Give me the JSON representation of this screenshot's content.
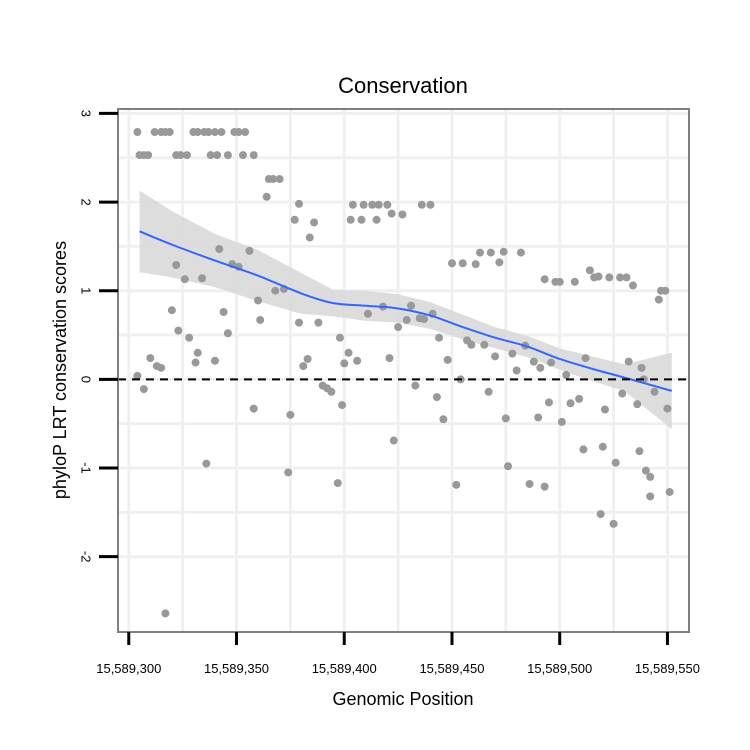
{
  "chart_data": {
    "type": "scatter",
    "title": "Conservation",
    "xlabel": "Genomic Position",
    "ylabel": "phyloP LRT conservation scores",
    "xlim": [
      15589295,
      15589560
    ],
    "ylim": [
      -2.85,
      3.05
    ],
    "x_ticks": [
      15589300,
      15589350,
      15589400,
      15589450,
      15589500,
      15589550
    ],
    "x_tick_labels": [
      "15,589,300",
      "15,589,350",
      "15,589,400",
      "15,589,450",
      "15,589,500",
      "15,589,550"
    ],
    "y_ticks": [
      -2,
      -1,
      0,
      1,
      2,
      3
    ],
    "y_tick_labels": [
      "-2",
      "-1",
      "0",
      "1",
      "2",
      "3"
    ],
    "reference_line": {
      "y": 0,
      "style": "dashed"
    },
    "grid": true,
    "colors": {
      "points": "#999999",
      "smooth": "#3366ff",
      "ribbon": "#d9d9d9",
      "panel_border": "#808080",
      "grid": "#f0f0f0"
    },
    "series": [
      {
        "name": "phyloP",
        "kind": "points",
        "points": [
          [
            15589304,
            2.79
          ],
          [
            15589305,
            2.53
          ],
          [
            15589307,
            2.53
          ],
          [
            15589309,
            2.53
          ],
          [
            15589312,
            2.79
          ],
          [
            15589315,
            2.79
          ],
          [
            15589317,
            2.79
          ],
          [
            15589319,
            2.79
          ],
          [
            15589322,
            2.53
          ],
          [
            15589324,
            2.53
          ],
          [
            15589327,
            2.53
          ],
          [
            15589330,
            2.79
          ],
          [
            15589332,
            2.79
          ],
          [
            15589335,
            2.79
          ],
          [
            15589337,
            2.79
          ],
          [
            15589338,
            2.53
          ],
          [
            15589340,
            2.79
          ],
          [
            15589341,
            2.53
          ],
          [
            15589343,
            2.79
          ],
          [
            15589346,
            2.53
          ],
          [
            15589349,
            2.79
          ],
          [
            15589351,
            2.79
          ],
          [
            15589353,
            2.53
          ],
          [
            15589354,
            2.79
          ],
          [
            15589358,
            2.53
          ],
          [
            15589304,
            0.04
          ],
          [
            15589307,
            -0.11
          ],
          [
            15589310,
            0.24
          ],
          [
            15589313,
            0.15
          ],
          [
            15589315,
            0.13
          ],
          [
            15589317,
            -2.64
          ],
          [
            15589320,
            0.78
          ],
          [
            15589322,
            1.29
          ],
          [
            15589323,
            0.55
          ],
          [
            15589326,
            1.13
          ],
          [
            15589328,
            0.47
          ],
          [
            15589331,
            0.19
          ],
          [
            15589332,
            0.3
          ],
          [
            15589334,
            1.14
          ],
          [
            15589336,
            -0.95
          ],
          [
            15589340,
            0.21
          ],
          [
            15589342,
            1.47
          ],
          [
            15589344,
            0.76
          ],
          [
            15589346,
            0.52
          ],
          [
            15589348,
            1.3
          ],
          [
            15589351,
            1.27
          ],
          [
            15589356,
            1.45
          ],
          [
            15589358,
            -0.33
          ],
          [
            15589360,
            0.89
          ],
          [
            15589361,
            0.67
          ],
          [
            15589364,
            2.06
          ],
          [
            15589365,
            2.26
          ],
          [
            15589367,
            2.26
          ],
          [
            15589370,
            2.26
          ],
          [
            15589368,
            1.0
          ],
          [
            15589372,
            1.02
          ],
          [
            15589374,
            -1.05
          ],
          [
            15589375,
            -0.4
          ],
          [
            15589377,
            1.8
          ],
          [
            15589379,
            1.98
          ],
          [
            15589379,
            0.64
          ],
          [
            15589381,
            0.15
          ],
          [
            15589383,
            0.23
          ],
          [
            15589384,
            1.6
          ],
          [
            15589386,
            1.77
          ],
          [
            15589388,
            0.64
          ],
          [
            15589390,
            -0.07
          ],
          [
            15589392,
            -0.1
          ],
          [
            15589394,
            -0.14
          ],
          [
            15589397,
            -1.17
          ],
          [
            15589398,
            0.47
          ],
          [
            15589399,
            -0.29
          ],
          [
            15589400,
            0.18
          ],
          [
            15589402,
            0.3
          ],
          [
            15589403,
            1.8
          ],
          [
            15589404,
            1.97
          ],
          [
            15589406,
            0.21
          ],
          [
            15589408,
            1.8
          ],
          [
            15589409,
            1.97
          ],
          [
            15589411,
            0.74
          ],
          [
            15589413,
            1.97
          ],
          [
            15589415,
            1.8
          ],
          [
            15589416,
            1.97
          ],
          [
            15589418,
            0.82
          ],
          [
            15589420,
            1.97
          ],
          [
            15589421,
            0.24
          ],
          [
            15589422,
            1.87
          ],
          [
            15589423,
            -0.69
          ],
          [
            15589425,
            0.59
          ],
          [
            15589427,
            1.86
          ],
          [
            15589429,
            0.67
          ],
          [
            15589431,
            0.83
          ],
          [
            15589433,
            -0.07
          ],
          [
            15589435,
            0.69
          ],
          [
            15589436,
            1.97
          ],
          [
            15589437,
            0.68
          ],
          [
            15589440,
            1.97
          ],
          [
            15589441,
            0.74
          ],
          [
            15589443,
            -0.2
          ],
          [
            15589444,
            0.47
          ],
          [
            15589446,
            -0.45
          ],
          [
            15589448,
            0.22
          ],
          [
            15589450,
            1.31
          ],
          [
            15589452,
            -1.19
          ],
          [
            15589454,
            0.0
          ],
          [
            15589455,
            1.31
          ],
          [
            15589457,
            0.44
          ],
          [
            15589459,
            0.39
          ],
          [
            15589461,
            1.3
          ],
          [
            15589463,
            1.43
          ],
          [
            15589465,
            0.39
          ],
          [
            15589467,
            -0.14
          ],
          [
            15589468,
            1.43
          ],
          [
            15589470,
            0.26
          ],
          [
            15589472,
            1.32
          ],
          [
            15589474,
            1.44
          ],
          [
            15589475,
            -0.44
          ],
          [
            15589476,
            -0.98
          ],
          [
            15589478,
            0.29
          ],
          [
            15589480,
            0.1
          ],
          [
            15589482,
            1.43
          ],
          [
            15589484,
            0.38
          ],
          [
            15589486,
            -1.18
          ],
          [
            15589488,
            0.2
          ],
          [
            15589490,
            -0.43
          ],
          [
            15589491,
            0.13
          ],
          [
            15589493,
            -1.21
          ],
          [
            15589493,
            1.13
          ],
          [
            15589495,
            -0.26
          ],
          [
            15589496,
            0.19
          ],
          [
            15589498,
            1.1
          ],
          [
            15589500,
            1.1
          ],
          [
            15589501,
            -0.48
          ],
          [
            15589503,
            0.05
          ],
          [
            15589505,
            -0.27
          ],
          [
            15589507,
            1.1
          ],
          [
            15589509,
            -0.22
          ],
          [
            15589511,
            -0.79
          ],
          [
            15589512,
            0.24
          ],
          [
            15589514,
            1.23
          ],
          [
            15589516,
            1.15
          ],
          [
            15589518,
            1.16
          ],
          [
            15589519,
            -1.52
          ],
          [
            15589520,
            -0.76
          ],
          [
            15589521,
            -0.34
          ],
          [
            15589523,
            1.15
          ],
          [
            15589525,
            -1.63
          ],
          [
            15589526,
            -0.94
          ],
          [
            15589528,
            1.15
          ],
          [
            15589529,
            -0.16
          ],
          [
            15589531,
            1.15
          ],
          [
            15589532,
            0.2
          ],
          [
            15589534,
            1.06
          ],
          [
            15589536,
            -0.28
          ],
          [
            15589537,
            -0.81
          ],
          [
            15589538,
            0.13
          ],
          [
            15589539,
            0.0
          ],
          [
            15589540,
            -1.03
          ],
          [
            15589542,
            -1.32
          ],
          [
            15589542,
            -1.1
          ],
          [
            15589544,
            -0.14
          ],
          [
            15589546,
            0.9
          ],
          [
            15589547,
            1.0
          ],
          [
            15589549,
            1.0
          ],
          [
            15589550,
            -0.33
          ],
          [
            15589551,
            -1.27
          ]
        ]
      },
      {
        "name": "loess fit",
        "kind": "line",
        "points": [
          [
            15589305,
            1.67
          ],
          [
            15589320,
            1.52
          ],
          [
            15589340,
            1.34
          ],
          [
            15589360,
            1.17
          ],
          [
            15589380,
            0.97
          ],
          [
            15589395,
            0.86
          ],
          [
            15589410,
            0.83
          ],
          [
            15589425,
            0.8
          ],
          [
            15589440,
            0.72
          ],
          [
            15589455,
            0.59
          ],
          [
            15589470,
            0.47
          ],
          [
            15589485,
            0.37
          ],
          [
            15589500,
            0.23
          ],
          [
            15589515,
            0.12
          ],
          [
            15589530,
            0.02
          ],
          [
            15589552,
            -0.13
          ]
        ]
      },
      {
        "name": "confidence band",
        "kind": "ribbon",
        "lower": [
          1.21,
          1.15,
          1.04,
          0.88,
          0.74,
          0.71,
          0.66,
          0.64,
          0.57,
          0.45,
          0.35,
          0.25,
          0.11,
          -0.02,
          -0.13,
          -0.56
        ],
        "upper": [
          2.13,
          1.9,
          1.64,
          1.46,
          1.2,
          1.01,
          1.0,
          0.96,
          0.87,
          0.73,
          0.59,
          0.49,
          0.35,
          0.26,
          0.17,
          0.3
        ]
      }
    ]
  }
}
